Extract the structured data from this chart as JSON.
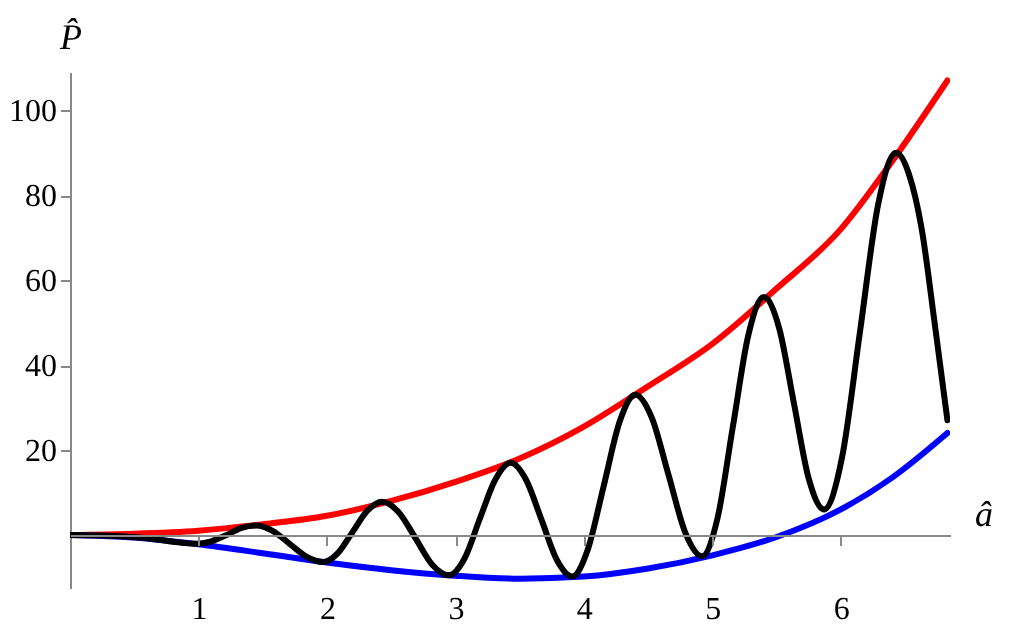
{
  "chart_data": {
    "type": "line",
    "xlabel": "â",
    "ylabel": "P̂",
    "xlim": [
      0,
      6.85
    ],
    "ylim": [
      -12.5,
      109
    ],
    "xticks": [
      1,
      2,
      3,
      4,
      5,
      6
    ],
    "yticks": [
      20,
      40,
      60,
      80,
      100
    ],
    "grid": false,
    "legend": false,
    "series": [
      {
        "color": "#ff0000",
        "x": [
          0,
          0.5,
          1,
          1.5,
          2,
          2.5,
          3,
          3.5,
          4,
          4.5,
          5,
          5.5,
          6,
          6.4,
          6.83
        ],
        "values": [
          0,
          0.3,
          1,
          2.5,
          4.5,
          8,
          12.5,
          18,
          25.5,
          35,
          45,
          58,
          72,
          88,
          107
        ]
      },
      {
        "color": "#0000ff",
        "x": [
          0,
          0.5,
          1,
          1.5,
          2,
          2.5,
          3,
          3.5,
          4,
          4.5,
          5,
          5.5,
          6,
          6.4,
          6.83
        ],
        "values": [
          0,
          -0.6,
          -2.2,
          -4.3,
          -6.5,
          -8.3,
          -9.6,
          -10.3,
          -9.8,
          -7.9,
          -4.8,
          -0.5,
          6,
          13.5,
          24
        ]
      },
      {
        "color": "#000000",
        "x": [
          0,
          0.3,
          0.6,
          0.8,
          0.98,
          1.1,
          1.22,
          1.33,
          1.45,
          1.58,
          1.71,
          1.84,
          1.97,
          2.085,
          2.2,
          2.315,
          2.43,
          2.56,
          2.69,
          2.82,
          2.95,
          3.07,
          3.19,
          3.31,
          3.43,
          3.55,
          3.67,
          3.79,
          3.91,
          4.03,
          4.155,
          4.28,
          4.4,
          4.53,
          4.66,
          4.79,
          4.92,
          5.04,
          5.16,
          5.28,
          5.4,
          5.52,
          5.635,
          5.75,
          5.87,
          6.01,
          6.15,
          6.29,
          6.43,
          6.53,
          6.63,
          6.73,
          6.83
        ],
        "values": [
          0,
          -0.2,
          -0.8,
          -1.6,
          -2.1,
          -1.5,
          0,
          1.6,
          2.2,
          0.9,
          -2.1,
          -5.1,
          -6.4,
          -4.3,
          0.7,
          5.7,
          7.8,
          5.3,
          -0.8,
          -7,
          -9.5,
          -5.6,
          3.8,
          13,
          17,
          13,
          3.6,
          -5.9,
          -9.8,
          -3.5,
          11.6,
          26.8,
          33,
          27.5,
          14,
          0.5,
          -5,
          3.9,
          25.5,
          47,
          56,
          48.7,
          31,
          13.3,
          6,
          18.3,
          48,
          77.7,
          90,
          85,
          72,
          50,
          27
        ]
      }
    ]
  }
}
